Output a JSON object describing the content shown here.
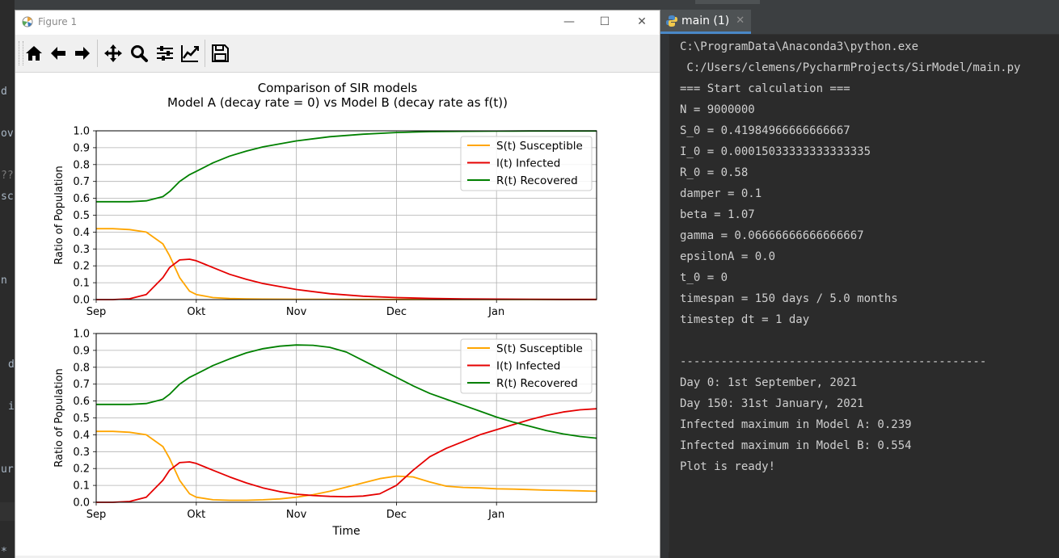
{
  "figure_window": {
    "title": "Figure 1",
    "buttons": {
      "minimize": "—",
      "maximize": "☐",
      "close": "✕"
    },
    "toolbar": [
      "home-icon",
      "back-icon",
      "forward-icon",
      "pan-icon",
      "zoom-icon",
      "configure-subplots-icon",
      "edit-axis-icon",
      "save-icon"
    ]
  },
  "chart_title": [
    "Comparison of SIR models",
    "Model A (decay rate = 0) vs Model B (decay rate as f(t))"
  ],
  "chart_data": [
    {
      "type": "line",
      "title": "Comparison of SIR models\nModel A (decay rate = 0) vs Model B (decay rate as f(t))",
      "xlabel": "",
      "ylabel": "Ratio of Population",
      "xlim": [
        0,
        150
      ],
      "ylim": [
        0,
        1.0
      ],
      "xtick_positions": [
        0,
        30,
        60,
        90,
        120
      ],
      "xtick_labels": [
        "Sep",
        "Okt",
        "Nov",
        "Dec",
        "Jan"
      ],
      "ytick_labels": [
        "0.0",
        "0.1",
        "0.2",
        "0.3",
        "0.4",
        "0.5",
        "0.6",
        "0.7",
        "0.8",
        "0.9",
        "1.0"
      ],
      "grid": true,
      "legend": "top-right",
      "x": [
        0,
        5,
        10,
        15,
        20,
        22,
        25,
        28,
        30,
        35,
        40,
        45,
        50,
        60,
        70,
        80,
        90,
        100,
        110,
        120,
        130,
        140,
        150
      ],
      "series": [
        {
          "name": "S(t) Susceptible",
          "color": "#ffa500",
          "values": [
            0.42,
            0.42,
            0.415,
            0.4,
            0.33,
            0.26,
            0.13,
            0.05,
            0.03,
            0.012,
            0.006,
            0.004,
            0.003,
            0.002,
            0.002,
            0.001,
            0.001,
            0.001,
            0.001,
            0.001,
            0.001,
            0.001,
            0.001
          ]
        },
        {
          "name": "I(t) Infected",
          "color": "#e50000",
          "values": [
            0.0,
            0.0,
            0.005,
            0.03,
            0.13,
            0.19,
            0.235,
            0.239,
            0.23,
            0.19,
            0.15,
            0.12,
            0.095,
            0.06,
            0.035,
            0.02,
            0.012,
            0.007,
            0.004,
            0.003,
            0.002,
            0.001,
            0.001
          ]
        },
        {
          "name": "R(t) Recovered",
          "color": "#008000",
          "values": [
            0.58,
            0.58,
            0.58,
            0.585,
            0.61,
            0.64,
            0.7,
            0.74,
            0.76,
            0.81,
            0.85,
            0.88,
            0.905,
            0.94,
            0.965,
            0.98,
            0.99,
            0.995,
            0.997,
            0.998,
            0.999,
            0.999,
            0.999
          ]
        }
      ]
    },
    {
      "type": "line",
      "title": "",
      "xlabel": "Time",
      "ylabel": "Ratio of Population",
      "xlim": [
        0,
        150
      ],
      "ylim": [
        0,
        1.0
      ],
      "xtick_positions": [
        0,
        30,
        60,
        90,
        120
      ],
      "xtick_labels": [
        "Sep",
        "Okt",
        "Nov",
        "Dec",
        "Jan"
      ],
      "ytick_labels": [
        "0.0",
        "0.1",
        "0.2",
        "0.3",
        "0.4",
        "0.5",
        "0.6",
        "0.7",
        "0.8",
        "0.9",
        "1.0"
      ],
      "grid": true,
      "legend": "top-right",
      "x": [
        0,
        5,
        10,
        15,
        20,
        22,
        25,
        28,
        30,
        35,
        40,
        45,
        50,
        55,
        60,
        65,
        70,
        75,
        80,
        85,
        90,
        95,
        100,
        105,
        110,
        115,
        120,
        125,
        130,
        135,
        140,
        145,
        150
      ],
      "series": [
        {
          "name": "S(t) Susceptible",
          "color": "#ffa500",
          "values": [
            0.42,
            0.42,
            0.415,
            0.4,
            0.33,
            0.26,
            0.13,
            0.05,
            0.03,
            0.015,
            0.012,
            0.012,
            0.015,
            0.02,
            0.03,
            0.045,
            0.065,
            0.09,
            0.115,
            0.14,
            0.155,
            0.15,
            0.12,
            0.095,
            0.088,
            0.085,
            0.08,
            0.078,
            0.075,
            0.072,
            0.07,
            0.068,
            0.065
          ]
        },
        {
          "name": "I(t) Infected",
          "color": "#e50000",
          "values": [
            0.0,
            0.0,
            0.005,
            0.03,
            0.13,
            0.19,
            0.235,
            0.239,
            0.23,
            0.19,
            0.15,
            0.115,
            0.085,
            0.063,
            0.048,
            0.04,
            0.035,
            0.033,
            0.037,
            0.05,
            0.1,
            0.19,
            0.27,
            0.32,
            0.36,
            0.4,
            0.43,
            0.46,
            0.49,
            0.515,
            0.535,
            0.548,
            0.554
          ]
        },
        {
          "name": "R(t) Recovered",
          "color": "#008000",
          "values": [
            0.58,
            0.58,
            0.58,
            0.585,
            0.61,
            0.64,
            0.7,
            0.74,
            0.76,
            0.81,
            0.85,
            0.885,
            0.91,
            0.925,
            0.932,
            0.93,
            0.918,
            0.89,
            0.84,
            0.79,
            0.74,
            0.69,
            0.645,
            0.61,
            0.575,
            0.54,
            0.505,
            0.475,
            0.45,
            0.425,
            0.405,
            0.39,
            0.38
          ]
        }
      ]
    }
  ],
  "run_panel": {
    "tab_label": "main (1)",
    "tab_close": "✕",
    "lines": [
      "C:\\ProgramData\\Anaconda3\\python.exe",
      " C:/Users/clemens/PycharmProjects/SirModel/main.py",
      "=== Start calculation ===",
      "N = 9000000",
      "S_0 = 0.41984966666666667",
      "I_0 = 0.00015033333333333335",
      "R_0 = 0.58",
      "damper = 0.1",
      "beta = 1.07",
      "gamma = 0.06666666666666667",
      "epsilonA = 0.0",
      "t_0 = 0",
      "timespan = 150 days / 5.0 months",
      "timestep dt = 1 day",
      "",
      "---------------------------------------------",
      "Day 0: 1st September, 2021",
      "Day 150: 31st January, 2021",
      "Infected maximum in Model A: 0.239",
      "Infected maximum in Model B: 0.554",
      "Plot is ready!"
    ]
  },
  "ide_fragments": [
    "d",
    "ov",
    "??",
    "sc",
    "n",
    "d",
    "i",
    "ur",
    "*"
  ]
}
